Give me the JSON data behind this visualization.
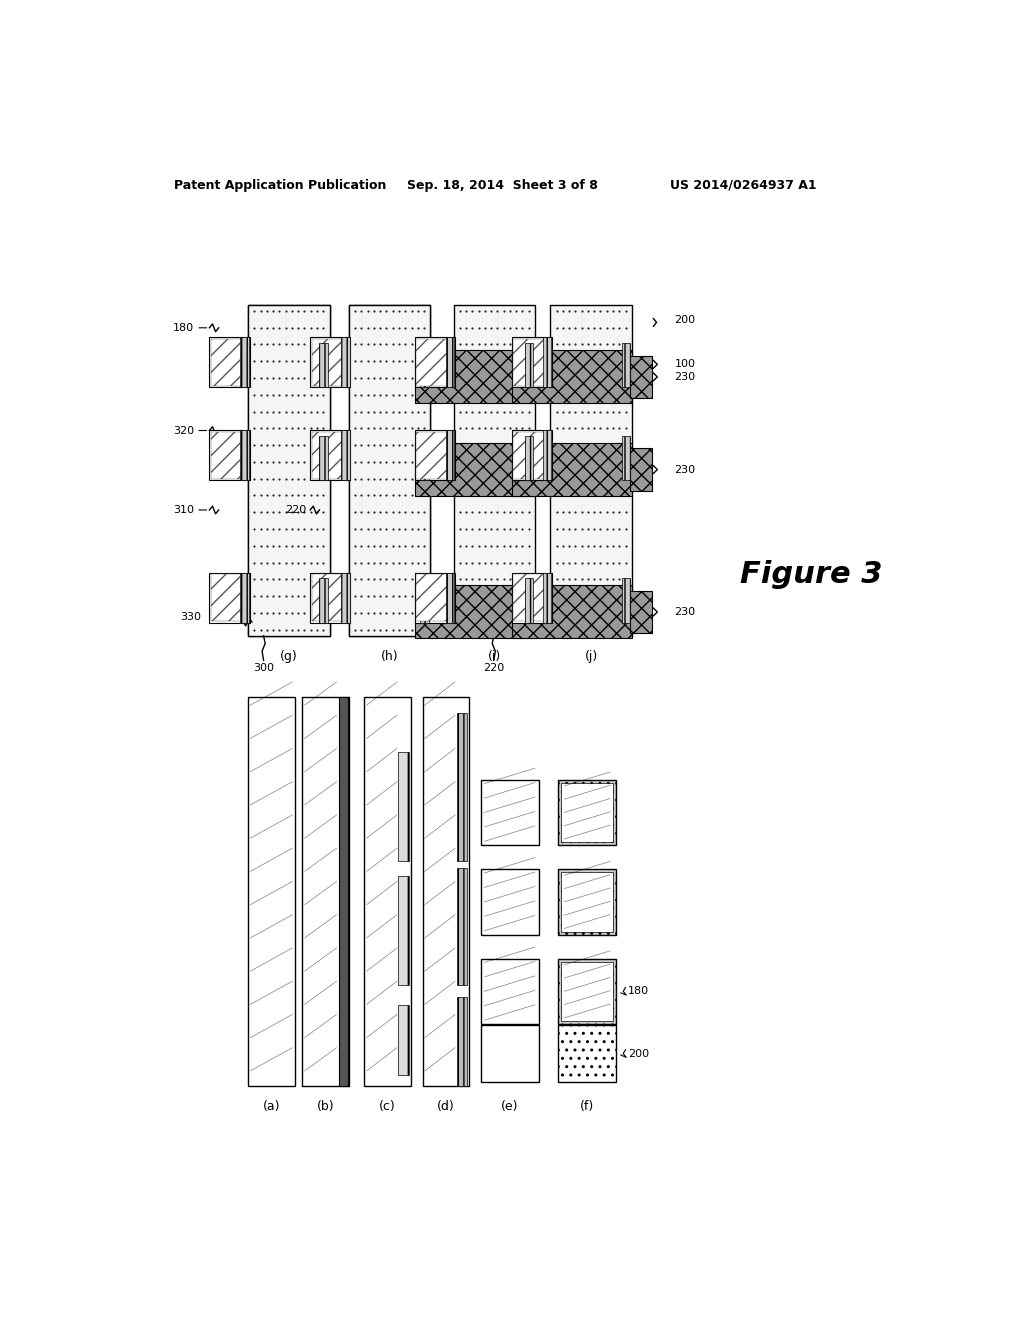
{
  "bg_color": "#ffffff",
  "header_text": "Patent Application Publication",
  "header_date": "Sep. 18, 2014  Sheet 3 of 8",
  "header_patent": "US 2014/0264937 A1"
}
